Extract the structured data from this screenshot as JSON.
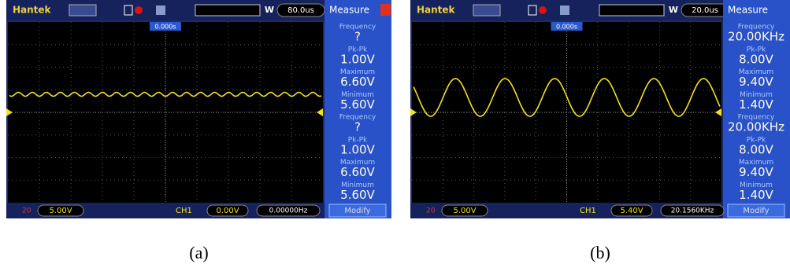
{
  "panels": [
    {
      "brand": "Hantek",
      "mode_icon": "W",
      "timebase": "80.0us",
      "trigger_time": "0.000s",
      "measure_title": "Measure",
      "measurements": [
        {
          "label": "Frequency",
          "value": "?"
        },
        {
          "label": "Pk-Pk",
          "value": "1.00V"
        },
        {
          "label": "Maximum",
          "value": "6.60V"
        },
        {
          "label": "Minimum",
          "value": "5.60V"
        },
        {
          "label": "Frequency",
          "value": "?"
        },
        {
          "label": "Pk-Pk",
          "value": "1.00V"
        },
        {
          "label": "Maximum",
          "value": "6.60V"
        },
        {
          "label": "Minimum",
          "value": "5.60V"
        }
      ],
      "bandwidth": "20",
      "channel_scale": "5.00V",
      "trigger_channel": "CH1",
      "trigger_level": "0.00V",
      "frequency": "0.00000Hz",
      "button": "Modify",
      "caption": "(a)"
    },
    {
      "brand": "Hantek",
      "mode_icon": "W",
      "timebase": "20.0us",
      "trigger_time": "0.000s",
      "measure_title": "Measure",
      "measurements": [
        {
          "label": "Frequency",
          "value": "20.00KHz"
        },
        {
          "label": "Pk-Pk",
          "value": "8.00V"
        },
        {
          "label": "Maximum",
          "value": "9.40V"
        },
        {
          "label": "Minimum",
          "value": "1.40V"
        },
        {
          "label": "Frequency",
          "value": "20.00KHz"
        },
        {
          "label": "Pk-Pk",
          "value": "8.00V"
        },
        {
          "label": "Maximum",
          "value": "9.40V"
        },
        {
          "label": "Minimum",
          "value": "1.40V"
        }
      ],
      "bandwidth": "20",
      "channel_scale": "5.00V",
      "trigger_channel": "CH1",
      "trigger_level": "5.40V",
      "frequency": "20.1560KHz",
      "button": "Modify",
      "caption": "(b)"
    }
  ]
}
